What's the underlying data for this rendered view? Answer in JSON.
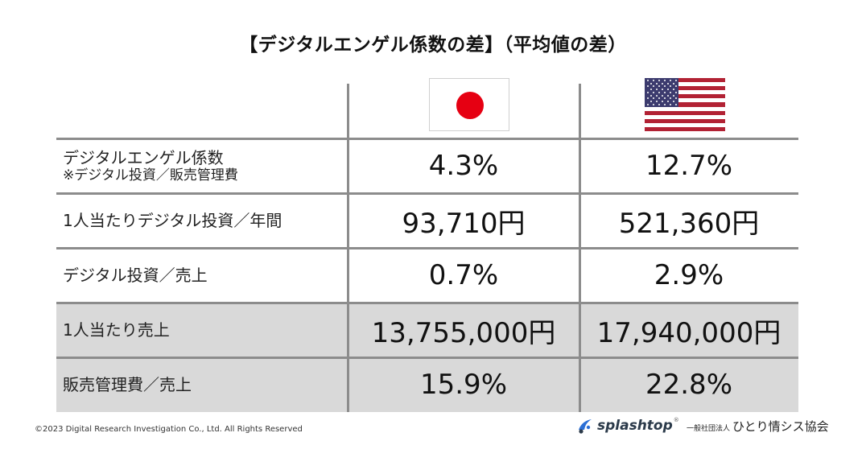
{
  "title": "【デジタルエンゲル係数の差】（平均値の差）",
  "flags": {
    "japan": {
      "name": "Japan",
      "colors": {
        "field": "#ffffff",
        "disc": "#e60012"
      }
    },
    "usa": {
      "name": "USA",
      "colors": {
        "red": "#b22234",
        "white": "#ffffff",
        "blue": "#3c3b6e"
      }
    }
  },
  "rows": [
    {
      "label": "デジタルエンゲル係数",
      "sublabel": "※デジタル投資／販売管理費",
      "japan": "4.3%",
      "usa": "12.7%"
    },
    {
      "label": "1人当たりデジタル投資／年間",
      "japan": "93,710円",
      "usa": "521,360円"
    },
    {
      "label": "デジタル投資／売上",
      "japan": "0.7%",
      "usa": "2.9%"
    },
    {
      "label": "1人当たり売上",
      "japan": "13,755,000円",
      "usa": "17,940,000円"
    },
    {
      "label": "販売管理費／売上",
      "japan": "15.9%",
      "usa": "22.8%"
    }
  ],
  "footer": {
    "copyright": "©2023 Digital Research Investigation Co., Ltd. All Rights Reserved",
    "logo_splashtop": "splashtop",
    "logo_splashtop_tm": "®",
    "logo_assoc_small": "一般社団法人",
    "logo_assoc_name": "ひとり情シス協会"
  },
  "colors": {
    "grid": "#8c8c8c",
    "shade": "#d9d9d9"
  }
}
